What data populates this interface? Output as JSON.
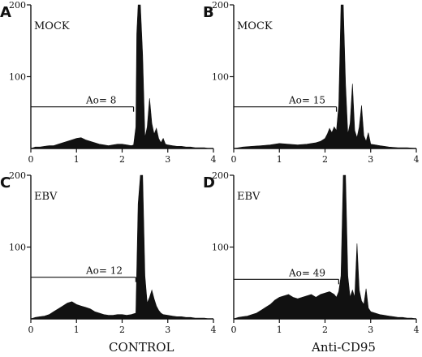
{
  "chart_data": [
    {
      "type": "area",
      "panel_letter": "A",
      "inset_label": "MOCK",
      "ylim": [
        0,
        200
      ],
      "xlim": [
        0,
        4
      ],
      "x_ticks": [
        0,
        1,
        2,
        3,
        4
      ],
      "y_ticks": [
        100,
        200
      ],
      "marker_text": "Ao= 8",
      "marker_x_end": 2.25,
      "marker_y": 58,
      "x": [
        0,
        0.1,
        0.2,
        0.3,
        0.4,
        0.5,
        0.6,
        0.7,
        0.8,
        0.9,
        1.0,
        1.1,
        1.2,
        1.3,
        1.4,
        1.5,
        1.6,
        1.7,
        1.8,
        1.9,
        2.0,
        2.1,
        2.2,
        2.25,
        2.3,
        2.32,
        2.35,
        2.4,
        2.45,
        2.5,
        2.55,
        2.6,
        2.65,
        2.7,
        2.75,
        2.8,
        2.85,
        2.9,
        2.95,
        3.0,
        3.1,
        3.2,
        3.3,
        3.4,
        3.5,
        3.6,
        3.7,
        3.8,
        3.9,
        4.0
      ],
      "values": [
        0,
        2,
        2,
        3,
        4,
        4,
        6,
        8,
        10,
        12,
        14,
        15,
        12,
        10,
        8,
        6,
        5,
        4,
        5,
        6,
        6,
        5,
        4,
        5,
        30,
        160,
        200,
        200,
        130,
        15,
        30,
        70,
        35,
        20,
        28,
        14,
        8,
        14,
        6,
        5,
        4,
        3,
        3,
        2,
        2,
        1,
        1,
        1,
        0,
        0
      ]
    },
    {
      "type": "area",
      "panel_letter": "B",
      "inset_label": "MOCK",
      "ylim": [
        0,
        200
      ],
      "xlim": [
        0,
        4
      ],
      "x_ticks": [
        0,
        1,
        2,
        3,
        4
      ],
      "y_ticks": [
        100,
        200
      ],
      "marker_text": "Ao= 15",
      "marker_x_end": 2.25,
      "marker_y": 58,
      "x": [
        0,
        0.2,
        0.4,
        0.6,
        0.8,
        1.0,
        1.2,
        1.4,
        1.6,
        1.8,
        1.9,
        2.0,
        2.05,
        2.1,
        2.15,
        2.2,
        2.25,
        2.3,
        2.35,
        2.4,
        2.45,
        2.5,
        2.55,
        2.6,
        2.65,
        2.7,
        2.75,
        2.8,
        2.85,
        2.9,
        2.95,
        3.0,
        3.1,
        3.2,
        3.3,
        3.4,
        3.6,
        3.8,
        4.0
      ],
      "values": [
        0,
        2,
        3,
        4,
        5,
        7,
        6,
        5,
        6,
        8,
        10,
        14,
        20,
        28,
        22,
        30,
        25,
        60,
        200,
        200,
        90,
        20,
        35,
        90,
        25,
        15,
        30,
        60,
        18,
        10,
        22,
        6,
        5,
        4,
        3,
        2,
        1,
        1,
        0
      ]
    },
    {
      "type": "area",
      "panel_letter": "C",
      "inset_label": "EBV",
      "ylim": [
        0,
        200
      ],
      "xlim": [
        0,
        4
      ],
      "x_ticks": [
        0,
        1,
        2,
        3,
        4
      ],
      "y_ticks": [
        100,
        200
      ],
      "marker_text": "Ao= 12",
      "marker_x_end": 2.3,
      "marker_y": 58,
      "x": [
        0,
        0.1,
        0.2,
        0.3,
        0.4,
        0.5,
        0.6,
        0.7,
        0.8,
        0.9,
        1.0,
        1.1,
        1.2,
        1.3,
        1.4,
        1.5,
        1.6,
        1.7,
        1.8,
        1.9,
        2.0,
        2.1,
        2.2,
        2.3,
        2.35,
        2.4,
        2.45,
        2.5,
        2.55,
        2.6,
        2.65,
        2.7,
        2.75,
        2.8,
        2.85,
        2.9,
        3.0,
        3.1,
        3.2,
        3.3,
        3.4,
        3.5,
        3.6,
        3.7,
        3.8,
        3.9,
        4.0
      ],
      "values": [
        0,
        2,
        3,
        4,
        6,
        10,
        14,
        18,
        22,
        24,
        20,
        18,
        16,
        14,
        10,
        8,
        6,
        5,
        5,
        6,
        6,
        5,
        6,
        8,
        160,
        200,
        200,
        60,
        22,
        30,
        40,
        28,
        18,
        12,
        8,
        6,
        5,
        4,
        3,
        3,
        2,
        2,
        1,
        1,
        1,
        0,
        0
      ]
    },
    {
      "type": "area",
      "panel_letter": "D",
      "inset_label": "EBV",
      "ylim": [
        0,
        200
      ],
      "xlim": [
        0,
        4
      ],
      "x_ticks": [
        0,
        1,
        2,
        3,
        4
      ],
      "y_ticks": [
        100,
        200
      ],
      "marker_text": "Ao= 49",
      "marker_x_end": 2.3,
      "marker_y": 55,
      "x": [
        0,
        0.1,
        0.2,
        0.3,
        0.4,
        0.5,
        0.6,
        0.7,
        0.8,
        0.9,
        1.0,
        1.1,
        1.2,
        1.3,
        1.4,
        1.5,
        1.6,
        1.7,
        1.8,
        1.9,
        2.0,
        2.1,
        2.2,
        2.25,
        2.3,
        2.35,
        2.4,
        2.45,
        2.5,
        2.55,
        2.6,
        2.65,
        2.7,
        2.75,
        2.8,
        2.85,
        2.9,
        2.95,
        3.0,
        3.1,
        3.2,
        3.3,
        3.4,
        3.5,
        3.6,
        3.7,
        3.8,
        3.9,
        4.0
      ],
      "values": [
        0,
        2,
        3,
        4,
        6,
        8,
        12,
        16,
        20,
        26,
        30,
        32,
        34,
        30,
        28,
        30,
        32,
        34,
        30,
        34,
        36,
        38,
        34,
        30,
        38,
        60,
        200,
        200,
        60,
        30,
        40,
        30,
        105,
        40,
        25,
        20,
        42,
        15,
        10,
        8,
        6,
        5,
        4,
        3,
        2,
        2,
        1,
        1,
        0
      ]
    }
  ],
  "column_labels": [
    "CONTROL",
    "Anti-CD95"
  ]
}
